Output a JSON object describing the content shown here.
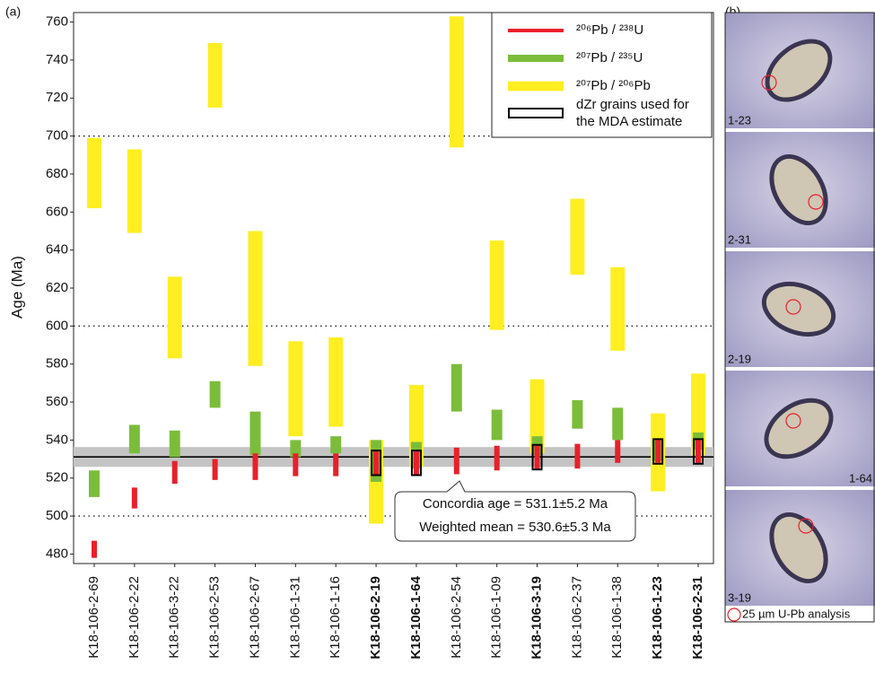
{
  "chart_data": {
    "type": "range-bar",
    "panel_label": "(a)",
    "y_label": "Age (Ma)",
    "ylim": [
      475,
      765
    ],
    "yticks": [
      480,
      500,
      520,
      540,
      560,
      580,
      600,
      620,
      640,
      660,
      680,
      700,
      720,
      740,
      760
    ],
    "reference_lines": [
      500,
      600,
      700
    ],
    "categories": [
      "K18-106-2-69",
      "K18-106-2-22",
      "K18-106-3-22",
      "K18-106-2-53",
      "K18-106-2-67",
      "K18-106-1-31",
      "K18-106-1-16",
      "K18-106-2-19",
      "K18-106-1-64",
      "K18-106-2-54",
      "K18-106-1-09",
      "K18-106-3-19",
      "K18-106-2-37",
      "K18-106-1-38",
      "K18-106-1-23",
      "K18-106-2-31"
    ],
    "mda_used": [
      false,
      false,
      false,
      false,
      false,
      false,
      false,
      true,
      true,
      false,
      false,
      true,
      false,
      false,
      true,
      true
    ],
    "mda_legend": [
      "dZr grains used for",
      "the MDA estimate"
    ],
    "series": [
      {
        "name": "²⁰⁷Pb / ²⁰⁶Pb",
        "color": "#ffee22",
        "width": 16,
        "values": [
          [
            662,
            699
          ],
          [
            649,
            693
          ],
          [
            583,
            626
          ],
          [
            715,
            749
          ],
          [
            579,
            650
          ],
          [
            542,
            592
          ],
          [
            547,
            594
          ],
          [
            496,
            540
          ],
          [
            526,
            569
          ],
          [
            694,
            763
          ],
          [
            598,
            645
          ],
          [
            533,
            572
          ],
          [
            627,
            667
          ],
          [
            587,
            631
          ],
          [
            513,
            554
          ],
          [
            532,
            575
          ]
        ]
      },
      {
        "name": "²⁰⁷Pb / ²³⁵U",
        "color": "#7bbd3a",
        "width": 12,
        "values": [
          [
            510,
            524
          ],
          [
            533,
            548
          ],
          [
            531,
            545
          ],
          [
            557,
            571
          ],
          [
            532,
            555
          ],
          [
            531,
            540
          ],
          [
            533,
            542
          ],
          [
            518,
            540
          ],
          [
            525,
            539
          ],
          [
            555,
            580
          ],
          [
            540,
            556
          ],
          [
            532,
            542
          ],
          [
            546,
            561
          ],
          [
            540,
            557
          ],
          [
            529,
            540
          ],
          [
            535,
            544
          ]
        ]
      },
      {
        "name": "²⁰⁶Pb / ²³⁸U",
        "color": "#e8202a",
        "width": 6,
        "values": [
          [
            478,
            487
          ],
          [
            504,
            515
          ],
          [
            517,
            529
          ],
          [
            519,
            530
          ],
          [
            519,
            533
          ],
          [
            521,
            533
          ],
          [
            521,
            533
          ],
          [
            522,
            534
          ],
          [
            522,
            534
          ],
          [
            522,
            536
          ],
          [
            524,
            537
          ],
          [
            525,
            537
          ],
          [
            525,
            538
          ],
          [
            528,
            540
          ],
          [
            528,
            540
          ],
          [
            528,
            540
          ]
        ]
      }
    ],
    "concordia": {
      "value": 531.1,
      "error": 5.2
    },
    "annotation": [
      "Concordia age = 531.1±5.2 Ma",
      "Weighted mean = 530.6±5.3 Ma"
    ]
  },
  "panel_b": {
    "label": "(b)",
    "grains": [
      "1-23",
      "2-31",
      "2-19",
      "1-64",
      "3-19"
    ],
    "legend": "25 µm U-Pb analysis"
  }
}
